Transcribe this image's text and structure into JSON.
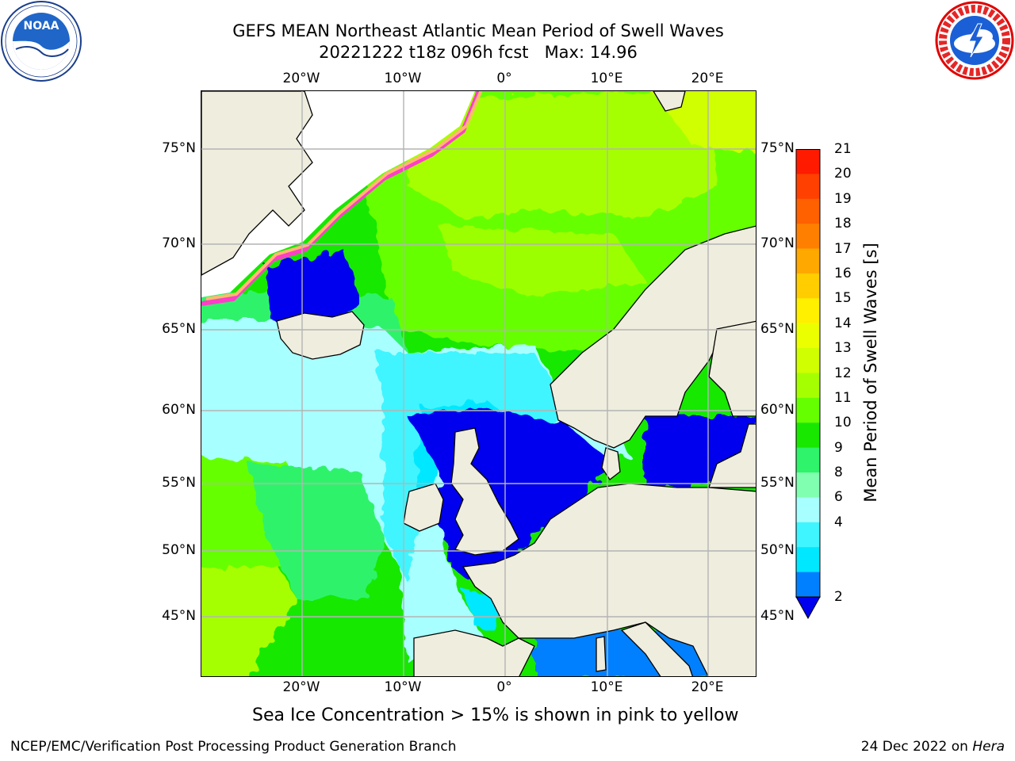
{
  "header": {
    "title_line1": "GEFS MEAN Northeast Atlantic Mean Period of Swell Waves",
    "title_line2": "20221222 t18z 096h fcst   Max: 14.96"
  },
  "logos": {
    "left": {
      "name": "NOAA",
      "text": "NOAA",
      "ring_text": "NATIONAL OCEANIC AND ATMOSPHERIC ADMINISTRATION · U.S. DEPARTMENT OF COMMERCE"
    },
    "right": {
      "name": "National Weather Service",
      "ring_text": "NATIONAL WEATHER SERVICE"
    }
  },
  "map": {
    "lon_ticks": [
      "20°W",
      "10°W",
      "0°",
      "10°E",
      "20°E"
    ],
    "lat_ticks": [
      "75°N",
      "70°N",
      "65°N",
      "60°N",
      "55°N",
      "50°N",
      "45°N"
    ],
    "colors": {
      "land": "#efedde",
      "ice_white": "#ffffff",
      "grid": "#b4b4b4"
    }
  },
  "colorbar": {
    "title": "Mean Period of Swell Waves [s]",
    "labels": [
      "21",
      "20",
      "19",
      "18",
      "17",
      "16",
      "15",
      "14",
      "13",
      "12",
      "11",
      "10",
      "9",
      "8",
      "6",
      "4",
      "2"
    ],
    "colors_top_to_bottom": [
      "#ff1a00",
      "#ff4000",
      "#ff6000",
      "#ff8000",
      "#ffa800",
      "#ffcd00",
      "#fff000",
      "#ecff00",
      "#cfff00",
      "#a6ff00",
      "#66ff00",
      "#18e800",
      "#2ff36a",
      "#80ffb0",
      "#a8ffff",
      "#3ff5ff",
      "#00e8ff",
      "#0080ff"
    ],
    "extend_color": "#0000ee"
  },
  "footer": {
    "note": "Sea Ice Concentration > 15% is shown in pink to yellow",
    "credit_left": "NCEP/EMC/Verification Post Processing Product Generation Branch",
    "credit_right_prefix": "24 Dec 2022 on ",
    "credit_right_machine": "Hera"
  }
}
